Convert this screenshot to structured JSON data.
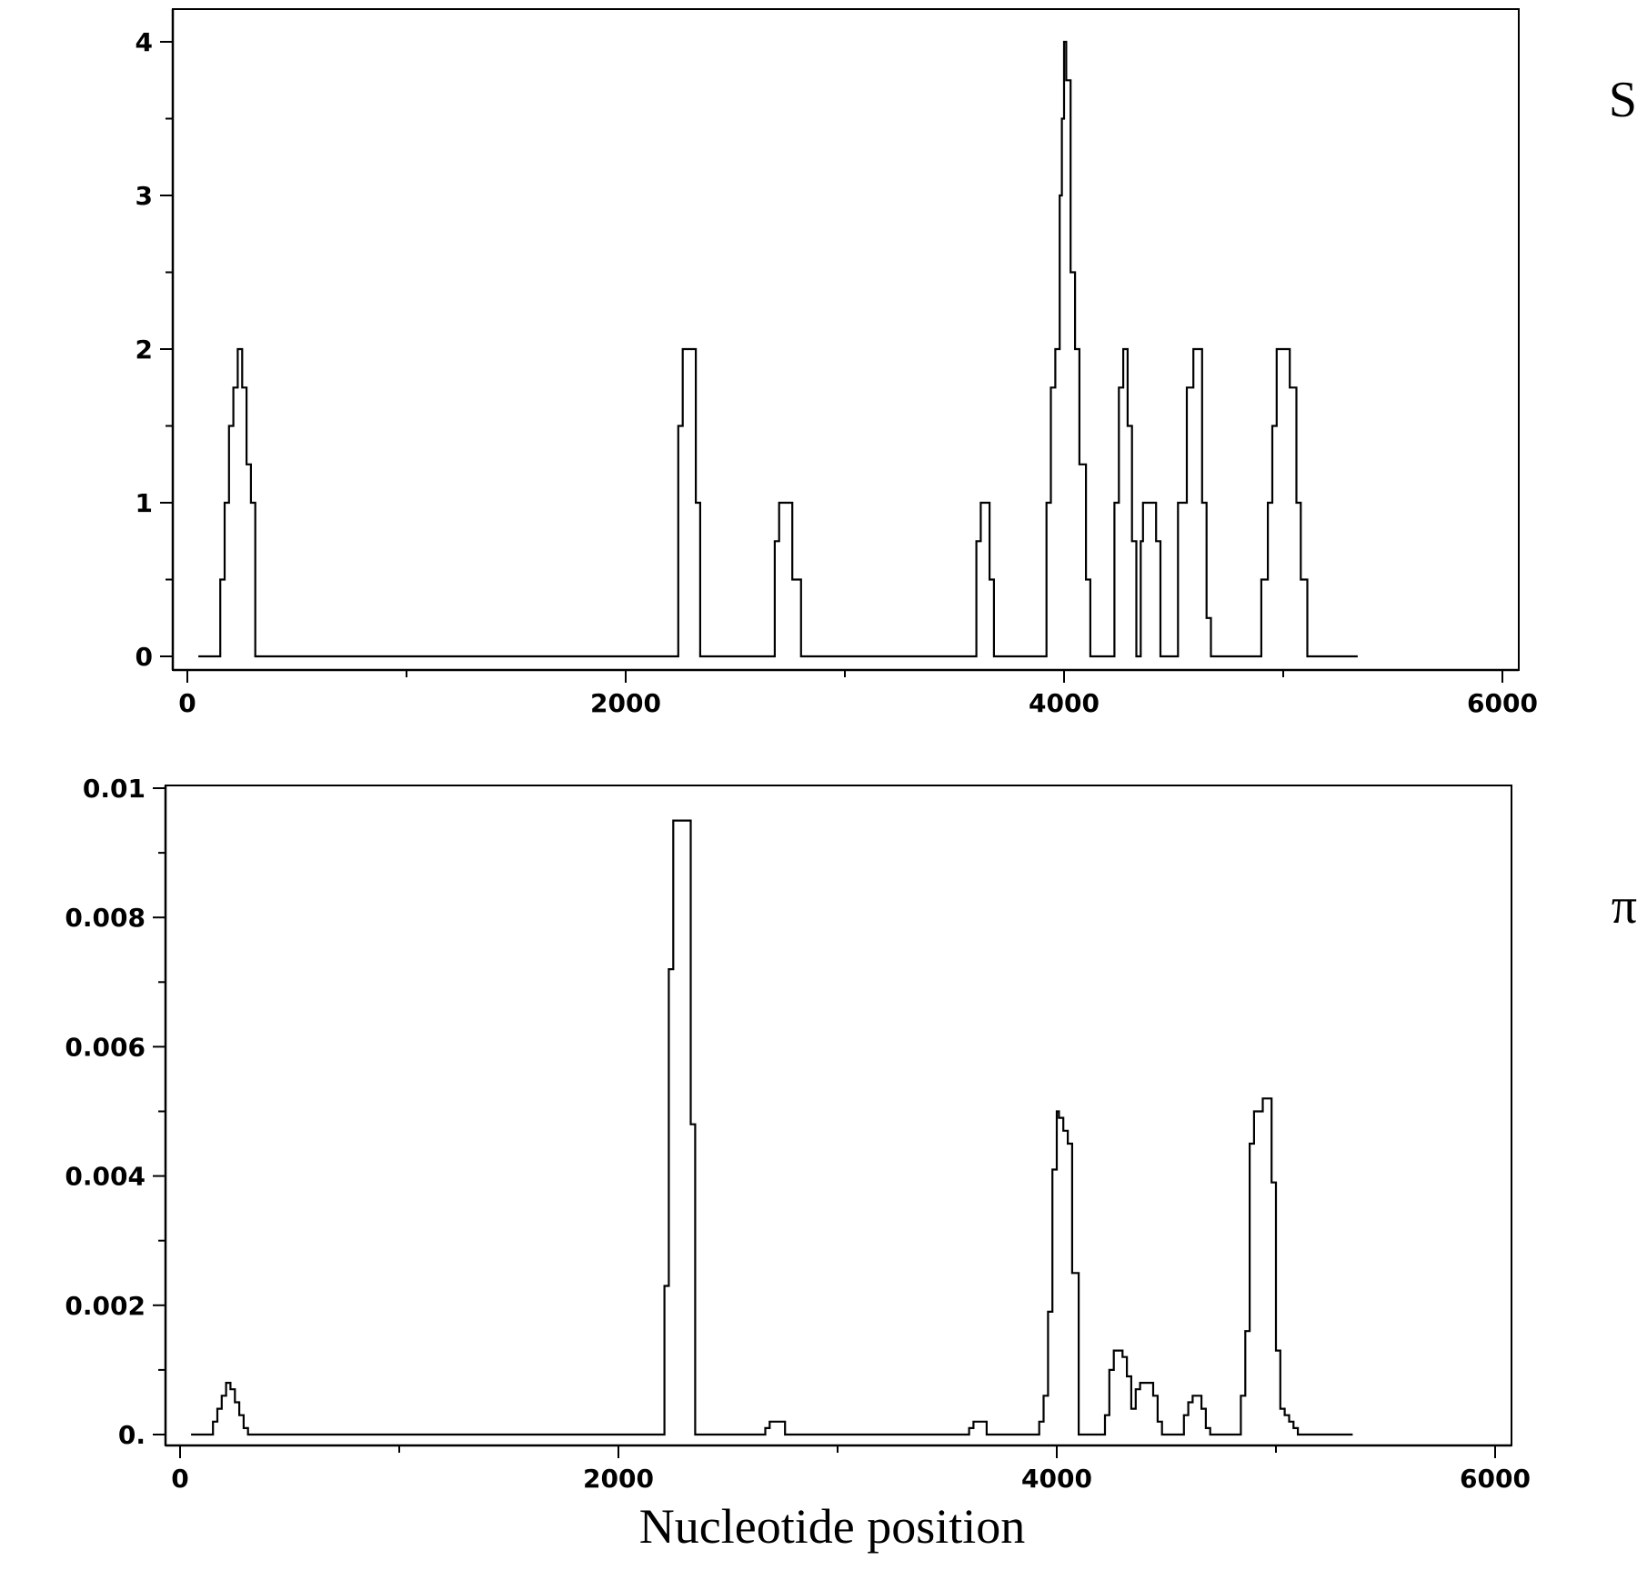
{
  "chart_data": [
    {
      "type": "line",
      "panel_label": "S",
      "xlabel": "",
      "ylabel": "",
      "xlim": [
        0,
        6000
      ],
      "ylim": [
        0,
        4
      ],
      "x_major_ticks": [
        0,
        2000,
        4000,
        6000
      ],
      "x_tick_labels": [
        "0",
        "2000",
        "4000",
        "6000"
      ],
      "y_major_ticks": [
        0,
        1,
        2,
        3,
        4
      ],
      "y_tick_labels": [
        "0",
        "1",
        "2",
        "3",
        "4"
      ],
      "grid": false,
      "series": [
        {
          "x": [
            50,
            130,
            150,
            170,
            190,
            210,
            230,
            250,
            270,
            290,
            310,
            2220,
            2240,
            2260,
            2280,
            2300,
            2320,
            2340,
            2660,
            2680,
            2700,
            2720,
            2740,
            2760,
            2800,
            3580,
            3600,
            3620,
            3640,
            3660,
            3680,
            3700,
            3900,
            3920,
            3940,
            3960,
            3980,
            3990,
            4000,
            4010,
            4030,
            4050,
            4070,
            4100,
            4120,
            4150,
            4210,
            4230,
            4250,
            4270,
            4290,
            4310,
            4330,
            4350,
            4360,
            4380,
            4400,
            4420,
            4440,
            4460,
            4480,
            4520,
            4560,
            4590,
            4610,
            4630,
            4650,
            4670,
            4690,
            4710,
            4750,
            4870,
            4900,
            4930,
            4950,
            4970,
            4990,
            5010,
            5030,
            5060,
            5080,
            5110,
            5150,
            5200,
            5340
          ],
          "y": [
            0,
            0,
            0.5,
            1,
            1.5,
            1.75,
            2,
            1.75,
            1.25,
            1,
            0,
            0,
            1.5,
            2,
            2,
            2,
            1,
            0,
            0,
            0.75,
            1,
            1,
            1,
            0.5,
            0,
            0,
            0.75,
            1,
            1,
            0.5,
            0,
            0,
            0,
            1,
            1.75,
            2,
            3,
            3.5,
            4,
            3.75,
            2.5,
            2,
            1.25,
            0.5,
            0,
            0,
            0,
            1,
            1.75,
            2,
            1.5,
            0.75,
            0,
            0.75,
            1,
            1,
            1,
            0.75,
            0,
            0,
            0,
            1,
            1.75,
            2,
            2,
            1,
            0.25,
            0,
            0,
            0,
            0,
            0,
            0.5,
            1,
            1.5,
            2,
            2,
            2,
            1.75,
            1,
            0.5,
            0,
            0,
            0,
            0
          ]
        }
      ]
    },
    {
      "type": "line",
      "panel_label": "π",
      "xlabel": "Nucleotide position",
      "ylabel": "",
      "xlim": [
        0,
        6000
      ],
      "ylim": [
        0,
        0.01
      ],
      "x_major_ticks": [
        0,
        2000,
        4000,
        6000
      ],
      "x_tick_labels": [
        "0",
        "2000",
        "4000",
        "6000"
      ],
      "y_major_ticks": [
        0,
        0.002,
        0.004,
        0.006,
        0.008,
        0.01
      ],
      "y_tick_labels": [
        "0.",
        "0.002",
        "0.004",
        "0.006",
        "0.008",
        "0.01"
      ],
      "grid": false,
      "series": [
        {
          "x": [
            50,
            130,
            150,
            170,
            190,
            210,
            230,
            250,
            270,
            290,
            310,
            2190,
            2210,
            2230,
            2250,
            2270,
            2290,
            2310,
            2330,
            2350,
            2650,
            2670,
            2690,
            2710,
            2730,
            2760,
            3580,
            3600,
            3620,
            3640,
            3660,
            3680,
            3900,
            3920,
            3940,
            3960,
            3980,
            4000,
            4010,
            4030,
            4050,
            4070,
            4100,
            4200,
            4220,
            4240,
            4260,
            4280,
            4300,
            4320,
            4340,
            4360,
            4380,
            4400,
            4420,
            4440,
            4460,
            4480,
            4560,
            4580,
            4600,
            4620,
            4640,
            4660,
            4680,
            4700,
            4820,
            4840,
            4860,
            4880,
            4900,
            4920,
            4940,
            4960,
            4980,
            5000,
            5020,
            5040,
            5060,
            5080,
            5100,
            5350
          ],
          "y": [
            0,
            0,
            0.0002,
            0.0004,
            0.0006,
            0.0008,
            0.0007,
            0.0005,
            0.0003,
            0.0001,
            0,
            0,
            0.0023,
            0.0072,
            0.0095,
            0.0095,
            0.0095,
            0.0095,
            0.0048,
            0,
            0,
            0.0001,
            0.0002,
            0.0002,
            0.0002,
            0,
            0,
            0.0001,
            0.0002,
            0.0002,
            0.0002,
            0,
            0,
            0.0002,
            0.0006,
            0.0019,
            0.0041,
            0.005,
            0.0049,
            0.0047,
            0.0045,
            0.0025,
            0,
            0,
            0.0003,
            0.001,
            0.0013,
            0.0013,
            0.0012,
            0.0009,
            0.0004,
            0.0007,
            0.0008,
            0.0008,
            0.0008,
            0.0006,
            0.0002,
            0,
            0,
            0.0003,
            0.0005,
            0.0006,
            0.0006,
            0.0004,
            0.0001,
            0,
            0,
            0.0006,
            0.0016,
            0.0045,
            0.005,
            0.005,
            0.0052,
            0.0052,
            0.0039,
            0.0013,
            0.0004,
            0.0003,
            0.0002,
            0.0001,
            0,
            0
          ]
        }
      ]
    }
  ]
}
